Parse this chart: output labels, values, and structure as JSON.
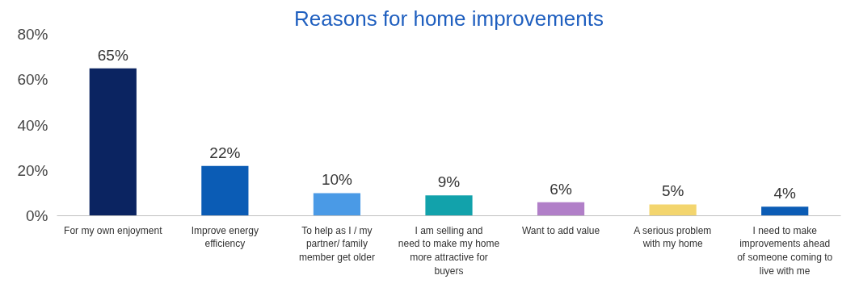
{
  "chart_data": {
    "type": "bar",
    "title": "Reasons for home improvements",
    "categories": [
      "For my own enjoyment",
      "Improve energy efficiency",
      "To help as I / my partner/ family member get older",
      "I am selling and need to make my home more attractive for buyers",
      "Want to add value",
      "A serious problem with my home",
      "I need to make improvements ahead of someone coming to live with me"
    ],
    "values": [
      65,
      22,
      10,
      9,
      6,
      5,
      4
    ],
    "colors": [
      "#0b2461",
      "#0b5cb5",
      "#4a9ae6",
      "#12a2ab",
      "#b17fc8",
      "#f3d56e",
      "#0b5cb5"
    ],
    "value_labels": [
      "65%",
      "22%",
      "10%",
      "9%",
      "6%",
      "5%",
      "4%"
    ],
    "ylim": [
      0,
      80
    ],
    "yticks": [
      {
        "value": 0,
        "label": "0%"
      },
      {
        "value": 20,
        "label": "20%"
      },
      {
        "value": 40,
        "label": "40%"
      },
      {
        "value": 60,
        "label": "60%"
      },
      {
        "value": 80,
        "label": "80%"
      }
    ],
    "grid": false
  }
}
